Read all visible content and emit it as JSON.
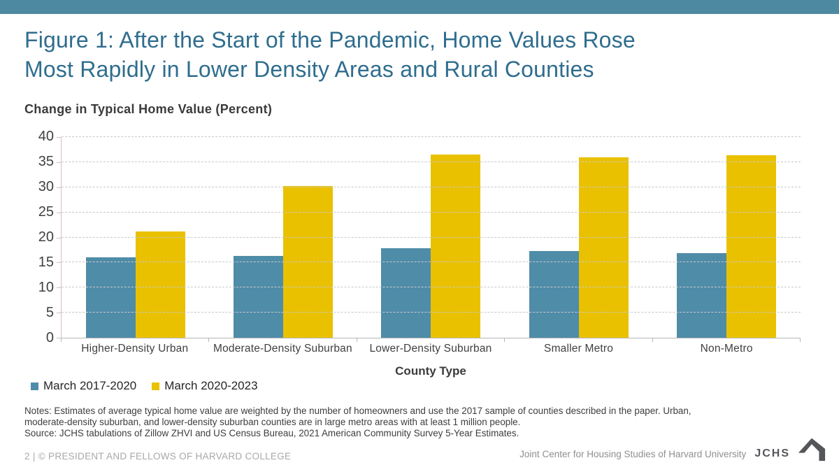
{
  "slide": {
    "accent_bar_color": "#4d89a1",
    "title_line1": "Figure 1: After the Start of the Pandemic, Home Values Rose",
    "title_line2": "Most Rapidly in Lower Density Areas and Rural Counties",
    "title_color": "#2f6d8e"
  },
  "chart_data": {
    "type": "bar",
    "title": "Change in Typical Home Value (Percent)",
    "xlabel": "County Type",
    "ylabel": "Change in Typical Home Value (Percent)",
    "categories": [
      "Higher-Density Urban",
      "Moderate-Density Suburban",
      "Lower-Density Suburban",
      "Smaller Metro",
      "Non-Metro"
    ],
    "series": [
      {
        "name": "March 2017-2020",
        "color": "#4f8ca8",
        "values": [
          16.0,
          16.3,
          17.8,
          17.3,
          16.9
        ]
      },
      {
        "name": "March 2020-2023",
        "color": "#e9c100",
        "values": [
          21.2,
          30.2,
          36.5,
          36.0,
          36.4
        ]
      }
    ],
    "ylim": [
      0,
      40
    ],
    "ytick_step": 5,
    "grid": "horizontal-dashed",
    "legend_position": "bottom-left"
  },
  "notes": {
    "lines": [
      "Notes: Estimates of average typical home value are weighted by the number of homeowners and use the 2017 sample of counties described in the paper. Urban,",
      "moderate-density suburban, and lower-density suburban counties are in large metro areas with at least 1 million people.",
      "Source: JCHS tabulations of Zillow ZHVI and US Census Bureau, 2021 American Community Survey 5-Year Estimates."
    ]
  },
  "footer": {
    "left": "2 | © PRESIDENT AND FELLOWS OF HARVARD COLLEGE",
    "right": "Joint Center for Housing Studies of Harvard University",
    "logo_text": "JCHS",
    "logo_icon": "house-icon",
    "logo_color": "#55565a"
  }
}
